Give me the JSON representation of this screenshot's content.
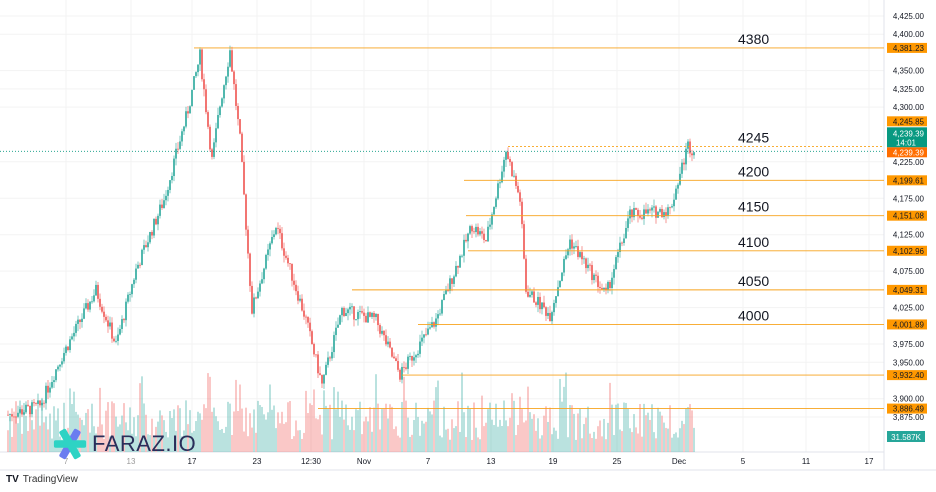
{
  "chart_data": {
    "type": "candlestick",
    "title": "",
    "y_axis": {
      "ticks": [
        4425,
        4400,
        4350,
        4325,
        4300,
        4225,
        4175,
        4125,
        4075,
        4025,
        3975,
        3950,
        3900,
        3875
      ],
      "ylim": [
        3860,
        4440
      ]
    },
    "x_axis": {
      "ticks": [
        "7",
        "13",
        "17",
        "23",
        "12:30",
        "Nov",
        "7",
        "13",
        "19",
        "25",
        "Dec",
        "5",
        "11",
        "17"
      ]
    },
    "price_path": [
      [
        0,
        3878
      ],
      [
        16,
        3890
      ],
      [
        26,
        3953
      ],
      [
        44,
        4049
      ],
      [
        54,
        3974
      ],
      [
        64,
        4077
      ],
      [
        78,
        4173
      ],
      [
        90,
        4296
      ],
      [
        96,
        4371
      ],
      [
        102,
        4227
      ],
      [
        106,
        4303
      ],
      [
        111,
        4378
      ],
      [
        116,
        4255
      ],
      [
        122,
        4022
      ],
      [
        134,
        4138
      ],
      [
        149,
        4008
      ],
      [
        157,
        3919
      ],
      [
        167,
        4022
      ],
      [
        184,
        4008
      ],
      [
        196,
        3933
      ],
      [
        214,
        4008
      ],
      [
        232,
        4138
      ],
      [
        239,
        4117
      ],
      [
        249,
        4241
      ],
      [
        256,
        4173
      ],
      [
        259,
        4049
      ],
      [
        271,
        4015
      ],
      [
        281,
        4117
      ],
      [
        299,
        4042
      ],
      [
        311,
        4152
      ],
      [
        331,
        4159
      ],
      [
        340,
        4248
      ],
      [
        343,
        4239
      ]
    ],
    "levels": [
      {
        "price": 4381.23,
        "label": "4380",
        "tag": "4,381.23",
        "start_bar": 93
      },
      {
        "price": 4245.85,
        "label": "4245",
        "tag": "4,245.85",
        "start_bar": 250
      },
      {
        "price": 4199.61,
        "label": "4200",
        "tag": "4,199.61",
        "start_bar": 228
      },
      {
        "price": 4151.08,
        "label": "4150",
        "tag": "4,151.08",
        "start_bar": 229
      },
      {
        "price": 4102.96,
        "label": "4100",
        "tag": "4,102.96",
        "start_bar": 230
      },
      {
        "price": 4049.31,
        "label": "4050",
        "tag": "4,049.31",
        "start_bar": 172
      },
      {
        "price": 4001.89,
        "label": "4000",
        "tag": "4,001.89",
        "start_bar": 205
      },
      {
        "price": 3932.4,
        "label": "",
        "tag": "3,932.40",
        "start_bar": 197
      },
      {
        "price": 3886.49,
        "label": "",
        "tag": "3,886.49",
        "start_bar": 155
      }
    ],
    "last_price": {
      "price": 4239.39,
      "tag": "4,239.39",
      "countdown": "14:01"
    },
    "volume_label": "31.587K"
  },
  "watermark": "FARAZ.IO",
  "footer": "TradingView",
  "colors": {
    "up": "#26a69a",
    "down": "#ef5350",
    "level": "#f7a21b",
    "level_tag": "#ff9800",
    "last": "#089981"
  }
}
